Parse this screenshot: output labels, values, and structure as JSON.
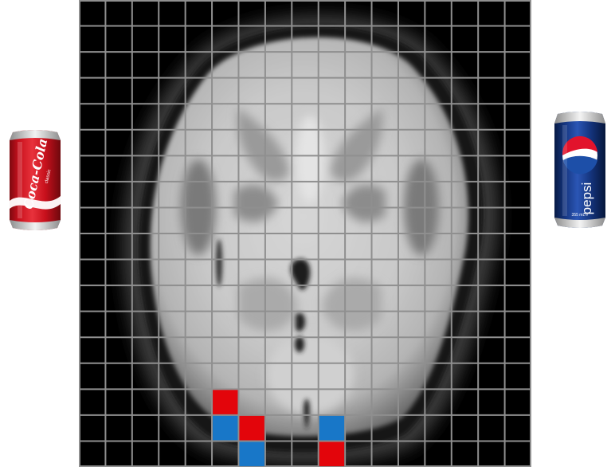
{
  "scan": {
    "grid": {
      "columns": 17,
      "rows": 18
    },
    "highlight_colors": {
      "red": "#e3050b",
      "blue": "#1877c8"
    },
    "highlighted_voxels": [
      {
        "col": 5,
        "row": 15,
        "color": "red"
      },
      {
        "col": 5,
        "row": 16,
        "color": "blue"
      },
      {
        "col": 6,
        "row": 16,
        "color": "red"
      },
      {
        "col": 6,
        "row": 17,
        "color": "blue"
      },
      {
        "col": 9,
        "row": 16,
        "color": "blue"
      },
      {
        "col": 9,
        "row": 17,
        "color": "red"
      }
    ]
  },
  "coke_can": {
    "icon": "coca-cola-can",
    "brand": "Coca-Cola",
    "variant": "classic",
    "colors": {
      "body": "#c8101c",
      "text": "#ffffff"
    }
  },
  "pepsi_can": {
    "icon": "pepsi-can",
    "brand": "pepsi",
    "volume": "355 mL ℮",
    "colors": {
      "body": "#15357f",
      "accent": "#e2132c",
      "text": "#ffffff"
    }
  }
}
